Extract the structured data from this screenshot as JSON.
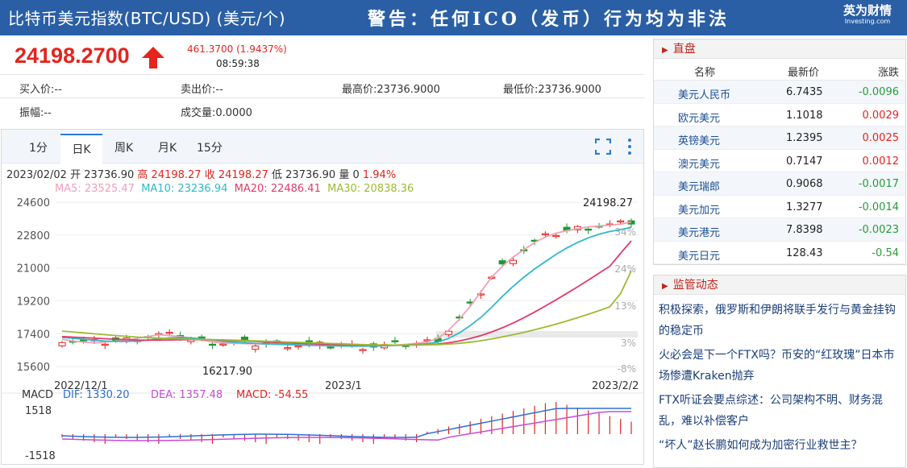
{
  "header": {
    "title": "比特币美元指数(BTC/USD) (美元/个)",
    "warning": "警告：任何ICO（发币）行为均为非法",
    "logo_cn": "英为财情",
    "logo_en": "Investing.com"
  },
  "quote": {
    "price": "24198.2700",
    "change": "461.3700 (1.9437%)",
    "time": "08:59:38",
    "bid": "买入价:--",
    "ask": "卖出价:--",
    "high": "最高价:23736.9000",
    "low": "最低价:23736.9000",
    "amplitude": "振幅:--",
    "volume": "成交量:0.0000"
  },
  "tabs": [
    "1分",
    "日K",
    "周K",
    "月K",
    "15分"
  ],
  "chart_info": {
    "ohlc_date": "2023/02/02",
    "open_label": "开 23736.90",
    "high_label": "高 24198.27",
    "close_label": "收 24198.27",
    "low_label": "低 23736.90",
    "vol_label": "量 0",
    "pct_label": "1.94%",
    "ma5": "MA5: 23525.47",
    "ma10": "MA10: 23236.94",
    "ma20": "MA20: 22486.41",
    "ma30": "MA30: 20838.36",
    "max_label": "24198.27",
    "min_label": "16217.90",
    "macd_label": "MACD",
    "dif": "DIF: 1330.20",
    "dea": "DEA: 1357.48",
    "macd_val": "MACD: -54.55",
    "macd_top": "1518",
    "macd_bottom": "-1518",
    "date_start": "2022/12/1",
    "date_mid": "2023/1",
    "date_end": "2023/2/2",
    "pct_ticks": [
      "34%",
      "24%",
      "13%",
      "3%",
      "-8%"
    ]
  },
  "chart_data": {
    "type": "line",
    "title": "",
    "y_ticks": [
      24600,
      22800,
      21000,
      19200,
      17400,
      15600
    ],
    "ylim": [
      15300,
      25000
    ],
    "x_ticks": [
      "2022/12/1",
      "2023/1",
      "2023/2/2"
    ],
    "series": [
      {
        "name": "MA5",
        "color": "#f2a0b6",
        "values": [
          17100,
          17000,
          16950,
          16900,
          16950,
          17000,
          17050,
          17150,
          17250,
          17350,
          17300,
          17250,
          17150,
          17050,
          16950,
          16900,
          16880,
          16860,
          16850,
          16840,
          16830,
          16820,
          16800,
          16780,
          16760,
          16740,
          16730,
          16720,
          16720,
          16730,
          16750,
          16780,
          16820,
          16880,
          16950,
          17150,
          17600,
          18200,
          18900,
          19700,
          20500,
          21100,
          21600,
          22000,
          22400,
          22700,
          22900,
          23050,
          23150,
          23250,
          23300,
          23350,
          23400,
          23525
        ]
      },
      {
        "name": "MA10",
        "color": "#30b8cc",
        "values": [
          17200,
          17150,
          17100,
          17050,
          17000,
          16980,
          16980,
          17000,
          17050,
          17120,
          17180,
          17200,
          17180,
          17120,
          17050,
          16990,
          16940,
          16900,
          16870,
          16850,
          16830,
          16810,
          16790,
          16770,
          16760,
          16750,
          16740,
          16730,
          16730,
          16735,
          16745,
          16760,
          16785,
          16820,
          16860,
          16950,
          17150,
          17450,
          17850,
          18300,
          18850,
          19450,
          20000,
          20500,
          20950,
          21350,
          21750,
          22100,
          22400,
          22650,
          22850,
          23000,
          23100,
          23237
        ]
      },
      {
        "name": "MA20",
        "color": "#e23a6a",
        "values": [
          17250,
          17220,
          17190,
          17160,
          17130,
          17100,
          17080,
          17060,
          17050,
          17050,
          17060,
          17070,
          17080,
          17080,
          17070,
          17050,
          17030,
          17000,
          16980,
          16950,
          16920,
          16900,
          16880,
          16860,
          16840,
          16820,
          16810,
          16800,
          16790,
          16780,
          16775,
          16775,
          16780,
          16790,
          16800,
          16840,
          16910,
          17010,
          17140,
          17300,
          17500,
          17730,
          17990,
          18280,
          18590,
          18920,
          19260,
          19610,
          19970,
          20340,
          20720,
          21100,
          21800,
          22486
        ]
      },
      {
        "name": "MA30",
        "color": "#9cbb30",
        "values": [
          17550,
          17500,
          17450,
          17400,
          17350,
          17300,
          17260,
          17220,
          17190,
          17160,
          17140,
          17120,
          17100,
          17090,
          17080,
          17070,
          17050,
          17030,
          17010,
          16990,
          16970,
          16950,
          16930,
          16910,
          16890,
          16870,
          16850,
          16830,
          16810,
          16795,
          16785,
          16780,
          16780,
          16785,
          16795,
          16810,
          16840,
          16880,
          16940,
          17020,
          17120,
          17230,
          17350,
          17480,
          17620,
          17770,
          17930,
          18100,
          18280,
          18470,
          18670,
          18880,
          19600,
          20838
        ]
      }
    ],
    "candles": {
      "count": 54,
      "min_value": 16217.9,
      "max_value": 24198.27
    }
  },
  "ticker": {
    "title": "直盘",
    "headers": [
      "名称",
      "最新价",
      "涨跌"
    ],
    "rows": [
      {
        "name": "美元人民币",
        "price": "6.7435",
        "chg": "-0.0096",
        "dir": "neg"
      },
      {
        "name": "欧元美元",
        "price": "1.1018",
        "chg": "0.0029",
        "dir": "pos"
      },
      {
        "name": "英镑美元",
        "price": "1.2395",
        "chg": "0.0025",
        "dir": "pos"
      },
      {
        "name": "澳元美元",
        "price": "0.7147",
        "chg": "0.0012",
        "dir": "pos"
      },
      {
        "name": "美元瑞郎",
        "price": "0.9068",
        "chg": "-0.0017",
        "dir": "neg"
      },
      {
        "name": "美元加元",
        "price": "1.3277",
        "chg": "-0.0014",
        "dir": "neg"
      },
      {
        "name": "美元港元",
        "price": "7.8398",
        "chg": "-0.0023",
        "dir": "neg"
      },
      {
        "name": "美元日元",
        "price": "128.43",
        "chg": "-0.54",
        "dir": "neg"
      }
    ]
  },
  "news": {
    "title": "监管动态",
    "items": [
      "积极探索，俄罗斯和伊朗将联手发行与黄金挂钩的稳定币",
      "火必会是下一个FTX吗？币安的“红玫瑰”日本市场惨遭Kraken抛弃",
      "FTX听证会要点综述：公司架构不明、财务混乱，难以补偿客户",
      "“坏人”赵长鹏如何成为加密行业救世主？"
    ]
  }
}
